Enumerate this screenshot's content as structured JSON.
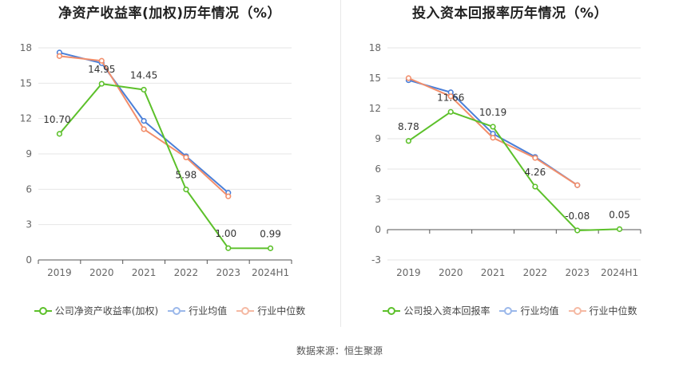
{
  "colors": {
    "company": "#5cc02a",
    "average": "#4a7fd8",
    "median": "#f28e6b",
    "grid": "#e6e6e6",
    "axis": "#555555",
    "tick": "#666666"
  },
  "legend": {
    "left": {
      "company": "公司净资产收益率(加权)",
      "average": "行业均值",
      "median": "行业中位数"
    },
    "right": {
      "company": "公司投入资本回报率",
      "average": "行业均值",
      "median": "行业中位数"
    }
  },
  "source": "数据来源：恒生聚源",
  "chart_data": [
    {
      "type": "line",
      "title": "净资产收益率(加权)历年情况（%）",
      "categories": [
        "2019",
        "2020",
        "2021",
        "2022",
        "2023",
        "2024H1"
      ],
      "ylim": [
        0,
        18
      ],
      "yticks": [
        0,
        3,
        6,
        9,
        12,
        15,
        18
      ],
      "series": [
        {
          "key": "company",
          "name": "公司净资产收益率(加权)",
          "values": [
            10.7,
            14.95,
            14.45,
            5.98,
            1.0,
            0.99
          ],
          "labels": [
            "10.70",
            "14.95",
            "14.45",
            "5.98",
            "1.00",
            "0.99"
          ]
        },
        {
          "key": "average",
          "name": "行业均值",
          "values": [
            17.6,
            16.7,
            11.8,
            8.8,
            5.7,
            null
          ]
        },
        {
          "key": "median",
          "name": "行业中位数",
          "values": [
            17.3,
            16.9,
            11.1,
            8.7,
            5.4,
            null
          ]
        }
      ]
    },
    {
      "type": "line",
      "title": "投入资本回报率历年情况（%）",
      "categories": [
        "2019",
        "2020",
        "2021",
        "2022",
        "2023",
        "2024H1"
      ],
      "ylim": [
        -3,
        18
      ],
      "yticks": [
        -3,
        0,
        3,
        6,
        9,
        12,
        15,
        18
      ],
      "series": [
        {
          "key": "company",
          "name": "公司投入资本回报率",
          "values": [
            8.78,
            11.66,
            10.19,
            4.26,
            -0.08,
            0.05
          ],
          "labels": [
            "8.78",
            "11.66",
            "10.19",
            "4.26",
            "-0.08",
            "0.05"
          ]
        },
        {
          "key": "average",
          "name": "行业均值",
          "values": [
            14.8,
            13.6,
            9.5,
            7.2,
            4.4,
            null
          ]
        },
        {
          "key": "median",
          "name": "行业中位数",
          "values": [
            15.0,
            13.2,
            9.1,
            7.1,
            4.4,
            null
          ]
        }
      ]
    }
  ]
}
